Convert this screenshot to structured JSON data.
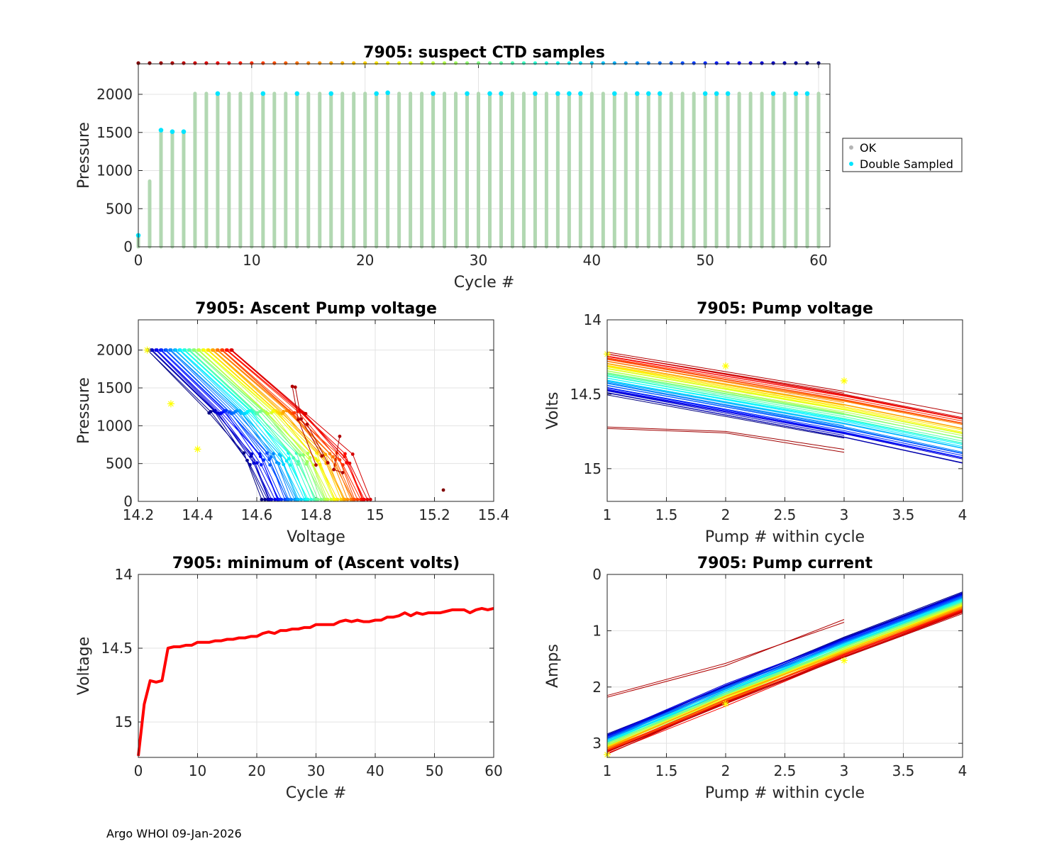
{
  "footer": "Argo WHOI 09-Jan-2026",
  "chart_data": [
    {
      "id": "ctd",
      "type": "scatter",
      "title": "7905: suspect CTD samples",
      "xlabel": "Cycle #",
      "ylabel": "Pressure",
      "xlim": [
        0,
        61
      ],
      "ylim": [
        2400,
        0
      ],
      "xticks": [
        0,
        10,
        20,
        30,
        40,
        50,
        60
      ],
      "yticks": [
        0,
        500,
        1000,
        1500,
        2000
      ],
      "grid": true,
      "legend": {
        "position": "outside-right",
        "entries": [
          {
            "label": "OK",
            "color": "#b4b4b4"
          },
          {
            "label": "Double Sampled",
            "color": "#00e5ff"
          }
        ]
      },
      "profile_depths": [
        {
          "x": 0,
          "max": 150
        },
        {
          "x": 1,
          "max": 860
        },
        {
          "x": 2,
          "max": 1520
        },
        {
          "x": 3,
          "max": 1510
        },
        {
          "x": 4,
          "max": 1510
        }
      ],
      "full_profile_cycles": [
        5,
        60
      ],
      "full_profile_depth": 2010,
      "double_sampled": [
        {
          "x": 0,
          "y": 150
        },
        {
          "x": 2,
          "y": 1530
        },
        {
          "x": 3,
          "y": 1510
        },
        {
          "x": 4,
          "y": 1510
        },
        {
          "x": 7,
          "y": 2010
        },
        {
          "x": 11,
          "y": 2010
        },
        {
          "x": 14,
          "y": 2010
        },
        {
          "x": 17,
          "y": 2010
        },
        {
          "x": 21,
          "y": 2010
        },
        {
          "x": 22,
          "y": 2020
        },
        {
          "x": 26,
          "y": 2010
        },
        {
          "x": 29,
          "y": 2010
        },
        {
          "x": 31,
          "y": 2010
        },
        {
          "x": 32,
          "y": 2010
        },
        {
          "x": 35,
          "y": 2010
        },
        {
          "x": 37,
          "y": 2010
        },
        {
          "x": 38,
          "y": 2010
        },
        {
          "x": 39,
          "y": 2010
        },
        {
          "x": 42,
          "y": 2010
        },
        {
          "x": 44,
          "y": 2010
        },
        {
          "x": 45,
          "y": 2010
        },
        {
          "x": 46,
          "y": 2010
        },
        {
          "x": 50,
          "y": 2010
        },
        {
          "x": 51,
          "y": 2010
        },
        {
          "x": 52,
          "y": 2010
        },
        {
          "x": 56,
          "y": 2010
        },
        {
          "x": 58,
          "y": 2010
        },
        {
          "x": 59,
          "y": 2010
        }
      ],
      "cycle_markers": {
        "y": 2400,
        "from": 0,
        "to": 60,
        "colormap": "jet"
      }
    },
    {
      "id": "ascent",
      "type": "line",
      "title": "7905: Ascent Pump voltage",
      "xlabel": "Voltage",
      "ylabel": "Pressure",
      "xlim": [
        14.2,
        15.4
      ],
      "ylim": [
        2400,
        0
      ],
      "xticks": [
        14.2,
        14.4,
        14.6,
        14.8,
        15.0,
        15.2,
        15.4
      ],
      "xticklabels": [
        "14.2",
        "14.4",
        "14.6",
        "14.8",
        "15",
        "15.2",
        "15.4"
      ],
      "yticks": [
        0,
        500,
        1000,
        1500,
        2000
      ],
      "grid": true,
      "series_model": {
        "cycles": 61,
        "deep_v_start": 14.23,
        "deep_v_end": 14.52,
        "shallow_v_start": 14.62,
        "shallow_v_end": 14.98
      },
      "early_series": [
        {
          "cycle": 0,
          "points": [
            [
              15.23,
              150
            ]
          ]
        },
        {
          "cycle": 1,
          "points": [
            [
              14.88,
              860
            ],
            [
              14.86,
              420
            ],
            [
              14.89,
              380
            ]
          ]
        },
        {
          "cycle": 2,
          "points": [
            [
              14.73,
              1510
            ],
            [
              14.75,
              1090
            ],
            [
              14.82,
              600
            ]
          ]
        },
        {
          "cycle": 3,
          "points": [
            [
              14.72,
              1520
            ],
            [
              14.74,
              1080
            ],
            [
              14.8,
              480
            ]
          ]
        },
        {
          "cycle": 4,
          "points": [
            [
              14.77,
              1020
            ],
            [
              14.84,
              510
            ]
          ]
        }
      ]
    },
    {
      "id": "pumpv",
      "type": "line",
      "title": "7905: Pump voltage",
      "xlabel": "Pump # within cycle",
      "ylabel": "Volts",
      "xlim": [
        1,
        4
      ],
      "ylim": [
        14,
        15.22
      ],
      "xticks": [
        1,
        1.5,
        2,
        2.5,
        3,
        3.5,
        4
      ],
      "xticklabels": [
        "1",
        "1.5",
        "2",
        "2.5",
        "3",
        "3.5",
        "4"
      ],
      "yticks": [
        14,
        14.5,
        15
      ],
      "yticklabels": [
        "14",
        "14.5",
        "15"
      ],
      "grid": true,
      "series_model": {
        "cycles": 61,
        "pump1_start": 14.5,
        "pump1_end": 14.22,
        "pump4_start": 14.97,
        "pump4_end": 14.64
      },
      "early_series": [
        {
          "cycle": 1,
          "values": [
            14.73,
            14.76,
            14.89
          ]
        },
        {
          "cycle": 2,
          "values": [
            14.72,
            14.75,
            14.87
          ]
        }
      ]
    },
    {
      "id": "minv",
      "type": "line",
      "title": "7905: minimum of (Ascent volts)",
      "xlabel": "Cycle #",
      "ylabel": "Voltage",
      "xlim": [
        0,
        60
      ],
      "ylim": [
        14,
        15.24
      ],
      "xticks": [
        0,
        10,
        20,
        30,
        40,
        50,
        60
      ],
      "yticks": [
        14,
        14.5,
        15
      ],
      "yticklabels": [
        "14",
        "14.5",
        "15"
      ],
      "grid": true,
      "color": "#ff0000",
      "x": [
        0,
        1,
        2,
        3,
        4,
        5,
        6,
        7,
        8,
        9,
        10,
        11,
        12,
        13,
        14,
        15,
        16,
        17,
        18,
        19,
        20,
        21,
        22,
        23,
        24,
        25,
        26,
        27,
        28,
        29,
        30,
        31,
        32,
        33,
        34,
        35,
        36,
        37,
        38,
        39,
        40,
        41,
        42,
        43,
        44,
        45,
        46,
        47,
        48,
        49,
        50,
        51,
        52,
        53,
        54,
        55,
        56,
        57,
        58,
        59,
        60
      ],
      "y": [
        15.23,
        14.88,
        14.72,
        14.73,
        14.72,
        14.5,
        14.49,
        14.49,
        14.48,
        14.48,
        14.46,
        14.46,
        14.46,
        14.45,
        14.45,
        14.44,
        14.44,
        14.43,
        14.43,
        14.42,
        14.42,
        14.4,
        14.39,
        14.4,
        14.38,
        14.38,
        14.37,
        14.37,
        14.36,
        14.36,
        14.34,
        14.34,
        14.34,
        14.34,
        14.32,
        14.31,
        14.32,
        14.31,
        14.32,
        14.32,
        14.31,
        14.31,
        14.29,
        14.29,
        14.28,
        14.26,
        14.28,
        14.26,
        14.27,
        14.26,
        14.26,
        14.26,
        14.25,
        14.24,
        14.24,
        14.24,
        14.26,
        14.24,
        14.23,
        14.24,
        14.23
      ]
    },
    {
      "id": "pumpc",
      "type": "line",
      "title": "7905: Pump current",
      "xlabel": "Pump # within cycle",
      "ylabel": "Amps",
      "xlim": [
        1,
        4
      ],
      "ylim": [
        0,
        3.25
      ],
      "xticks": [
        1,
        1.5,
        2,
        2.5,
        3,
        3.5,
        4
      ],
      "xticklabels": [
        "1",
        "1.5",
        "2",
        "2.5",
        "3",
        "3.5",
        "4"
      ],
      "yticks": [
        0,
        1,
        2,
        3
      ],
      "grid": true,
      "series_model": {
        "cycles": 61,
        "pump1_start": 2.85,
        "pump1_end": 3.18,
        "pump4_start": 0.32,
        "pump4_end": 0.68
      },
      "early_series": [
        {
          "cycle": 1,
          "values": [
            2.18,
            1.62,
            0.8
          ]
        },
        {
          "cycle": 2,
          "values": [
            2.15,
            1.58,
            0.85
          ]
        }
      ]
    }
  ]
}
